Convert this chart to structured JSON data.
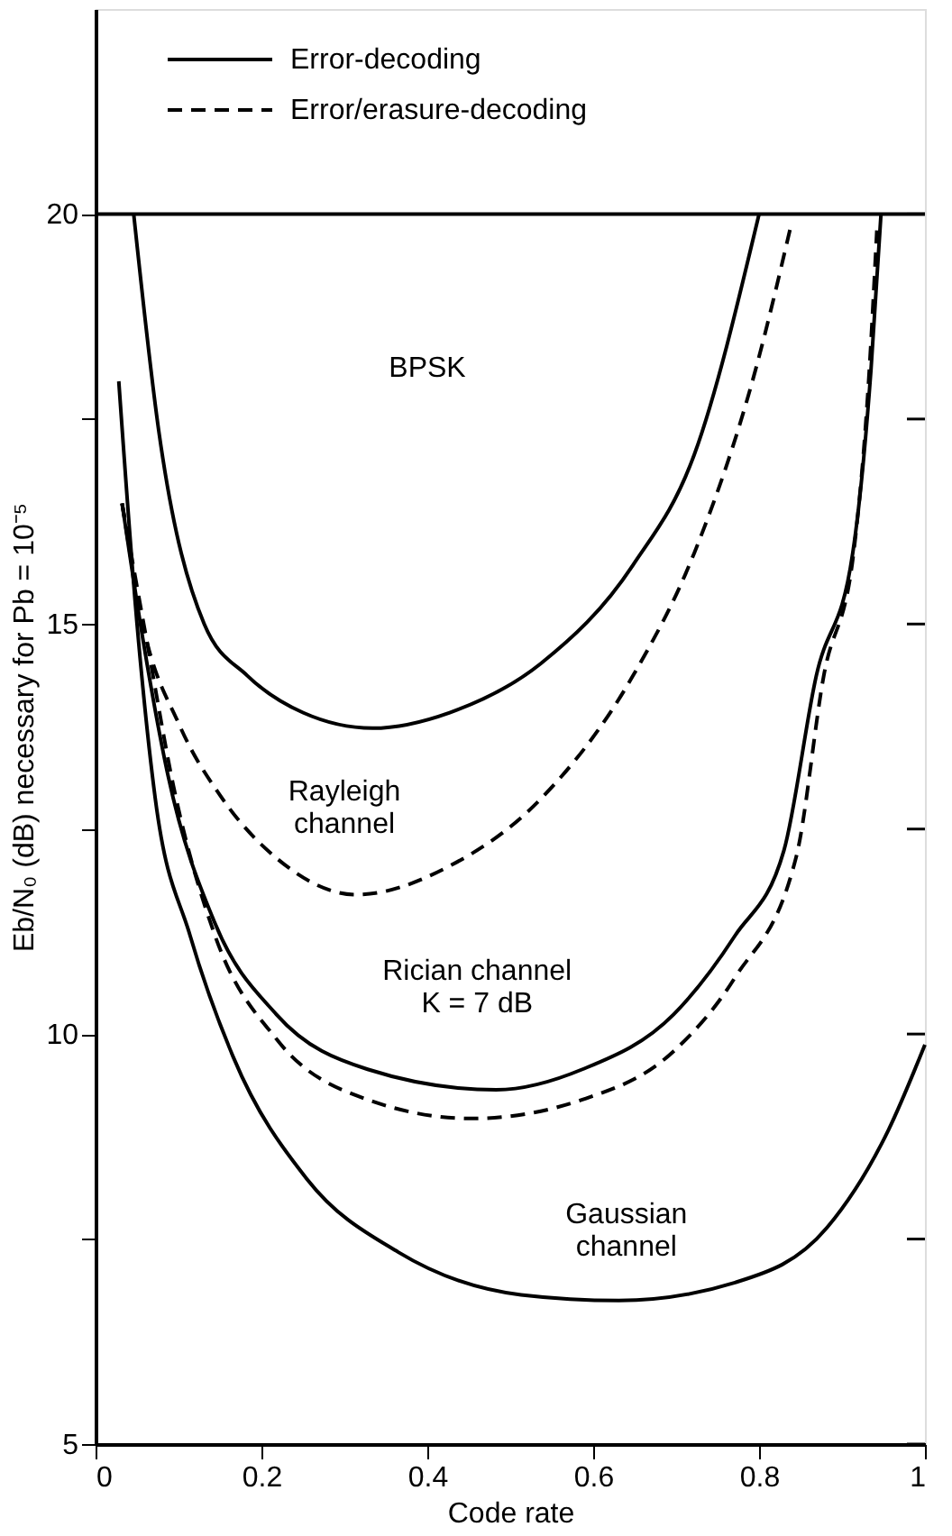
{
  "chart_data": {
    "type": "line",
    "xlabel": "Code rate",
    "ylabel": "Eb/N₀ (dB) necessary for Pb = 10⁻⁵",
    "xlim": [
      0,
      1
    ],
    "ylim": [
      5,
      22.5
    ],
    "xticks": [
      0,
      0.2,
      0.4,
      0.6,
      0.8,
      1
    ],
    "yticks": [
      5,
      {
        "value": 7.5,
        "label": null
      },
      10,
      {
        "value": 12.5,
        "label": null
      },
      15,
      {
        "value": 17.5,
        "label": null
      },
      20
    ],
    "grid": false,
    "legend": "top",
    "series": [
      {
        "name": "Error-decoding",
        "color": "#000000",
        "line_style": "solid",
        "x": [
          0.046,
          0.076,
          0.131,
          0.183,
          0.25,
          0.334,
          0.427,
          0.537,
          0.648,
          0.722,
          0.8
        ],
        "values": [
          20,
          17.37,
          15,
          14.37,
          13.92,
          13.73,
          13.92,
          14.52,
          15.72,
          17.07,
          20
        ]
      },
      {
        "name": "Error/erasure-decoding",
        "color": "#000000",
        "line_style": "dashed",
        "x": [
          0.032,
          0.057,
          0.101,
          0.153,
          0.22,
          0.314,
          0.427,
          0.537,
          0.648,
          0.722,
          0.796,
          0.838
        ],
        "values": [
          16.47,
          15,
          13.77,
          12.87,
          12.13,
          11.7,
          12.05,
          12.87,
          14.37,
          15.87,
          18.11,
          19.84
        ]
      },
      {
        "color": "#000000",
        "line_style": "solid",
        "x": [
          0.032,
          0.057,
          0.087,
          0.144,
          0.218,
          0.328,
          0.483,
          0.587,
          0.697,
          0.771,
          0.83,
          0.869,
          0.913,
          0.935,
          0.947
        ],
        "values": [
          16.47,
          14.82,
          13.17,
          11.35,
          10.24,
          9.57,
          9.32,
          9.57,
          10.24,
          11.2,
          12.24,
          14.37,
          15.87,
          18.11,
          20
        ]
      },
      {
        "color": "#000000",
        "line_style": "dashed",
        "x": [
          0.032,
          0.064,
          0.094,
          0.144,
          0.218,
          0.328,
          0.454,
          0.587,
          0.697,
          0.771,
          0.845,
          0.878,
          0.914,
          0.933,
          0.942
        ],
        "values": [
          16.47,
          14.67,
          13.02,
          11.2,
          9.94,
          9.2,
          8.97,
          9.2,
          9.79,
          10.69,
          12.17,
          14.37,
          15.87,
          18.11,
          19.8
        ]
      },
      {
        "color": "#000000",
        "line_style": "solid",
        "x": [
          0.028,
          0.05,
          0.072,
          0.114,
          0.166,
          0.255,
          0.365,
          0.513,
          0.631,
          0.771,
          0.882,
          0.956,
          1.0
        ],
        "values": [
          17.96,
          15,
          12.87,
          11.2,
          9.72,
          8.23,
          7.34,
          6.82,
          6.75,
          6.97,
          7.64,
          8.83,
          9.87
        ]
      }
    ],
    "ref_lines": [
      {
        "axis": "y",
        "value": 20,
        "label": null,
        "color": "#000000",
        "line_style": "solid"
      }
    ],
    "annotations": [
      "BPSK",
      "Rayleigh\nchannel",
      "Rician channel\nK = 7 dB",
      "Gaussian\nchannel"
    ]
  }
}
